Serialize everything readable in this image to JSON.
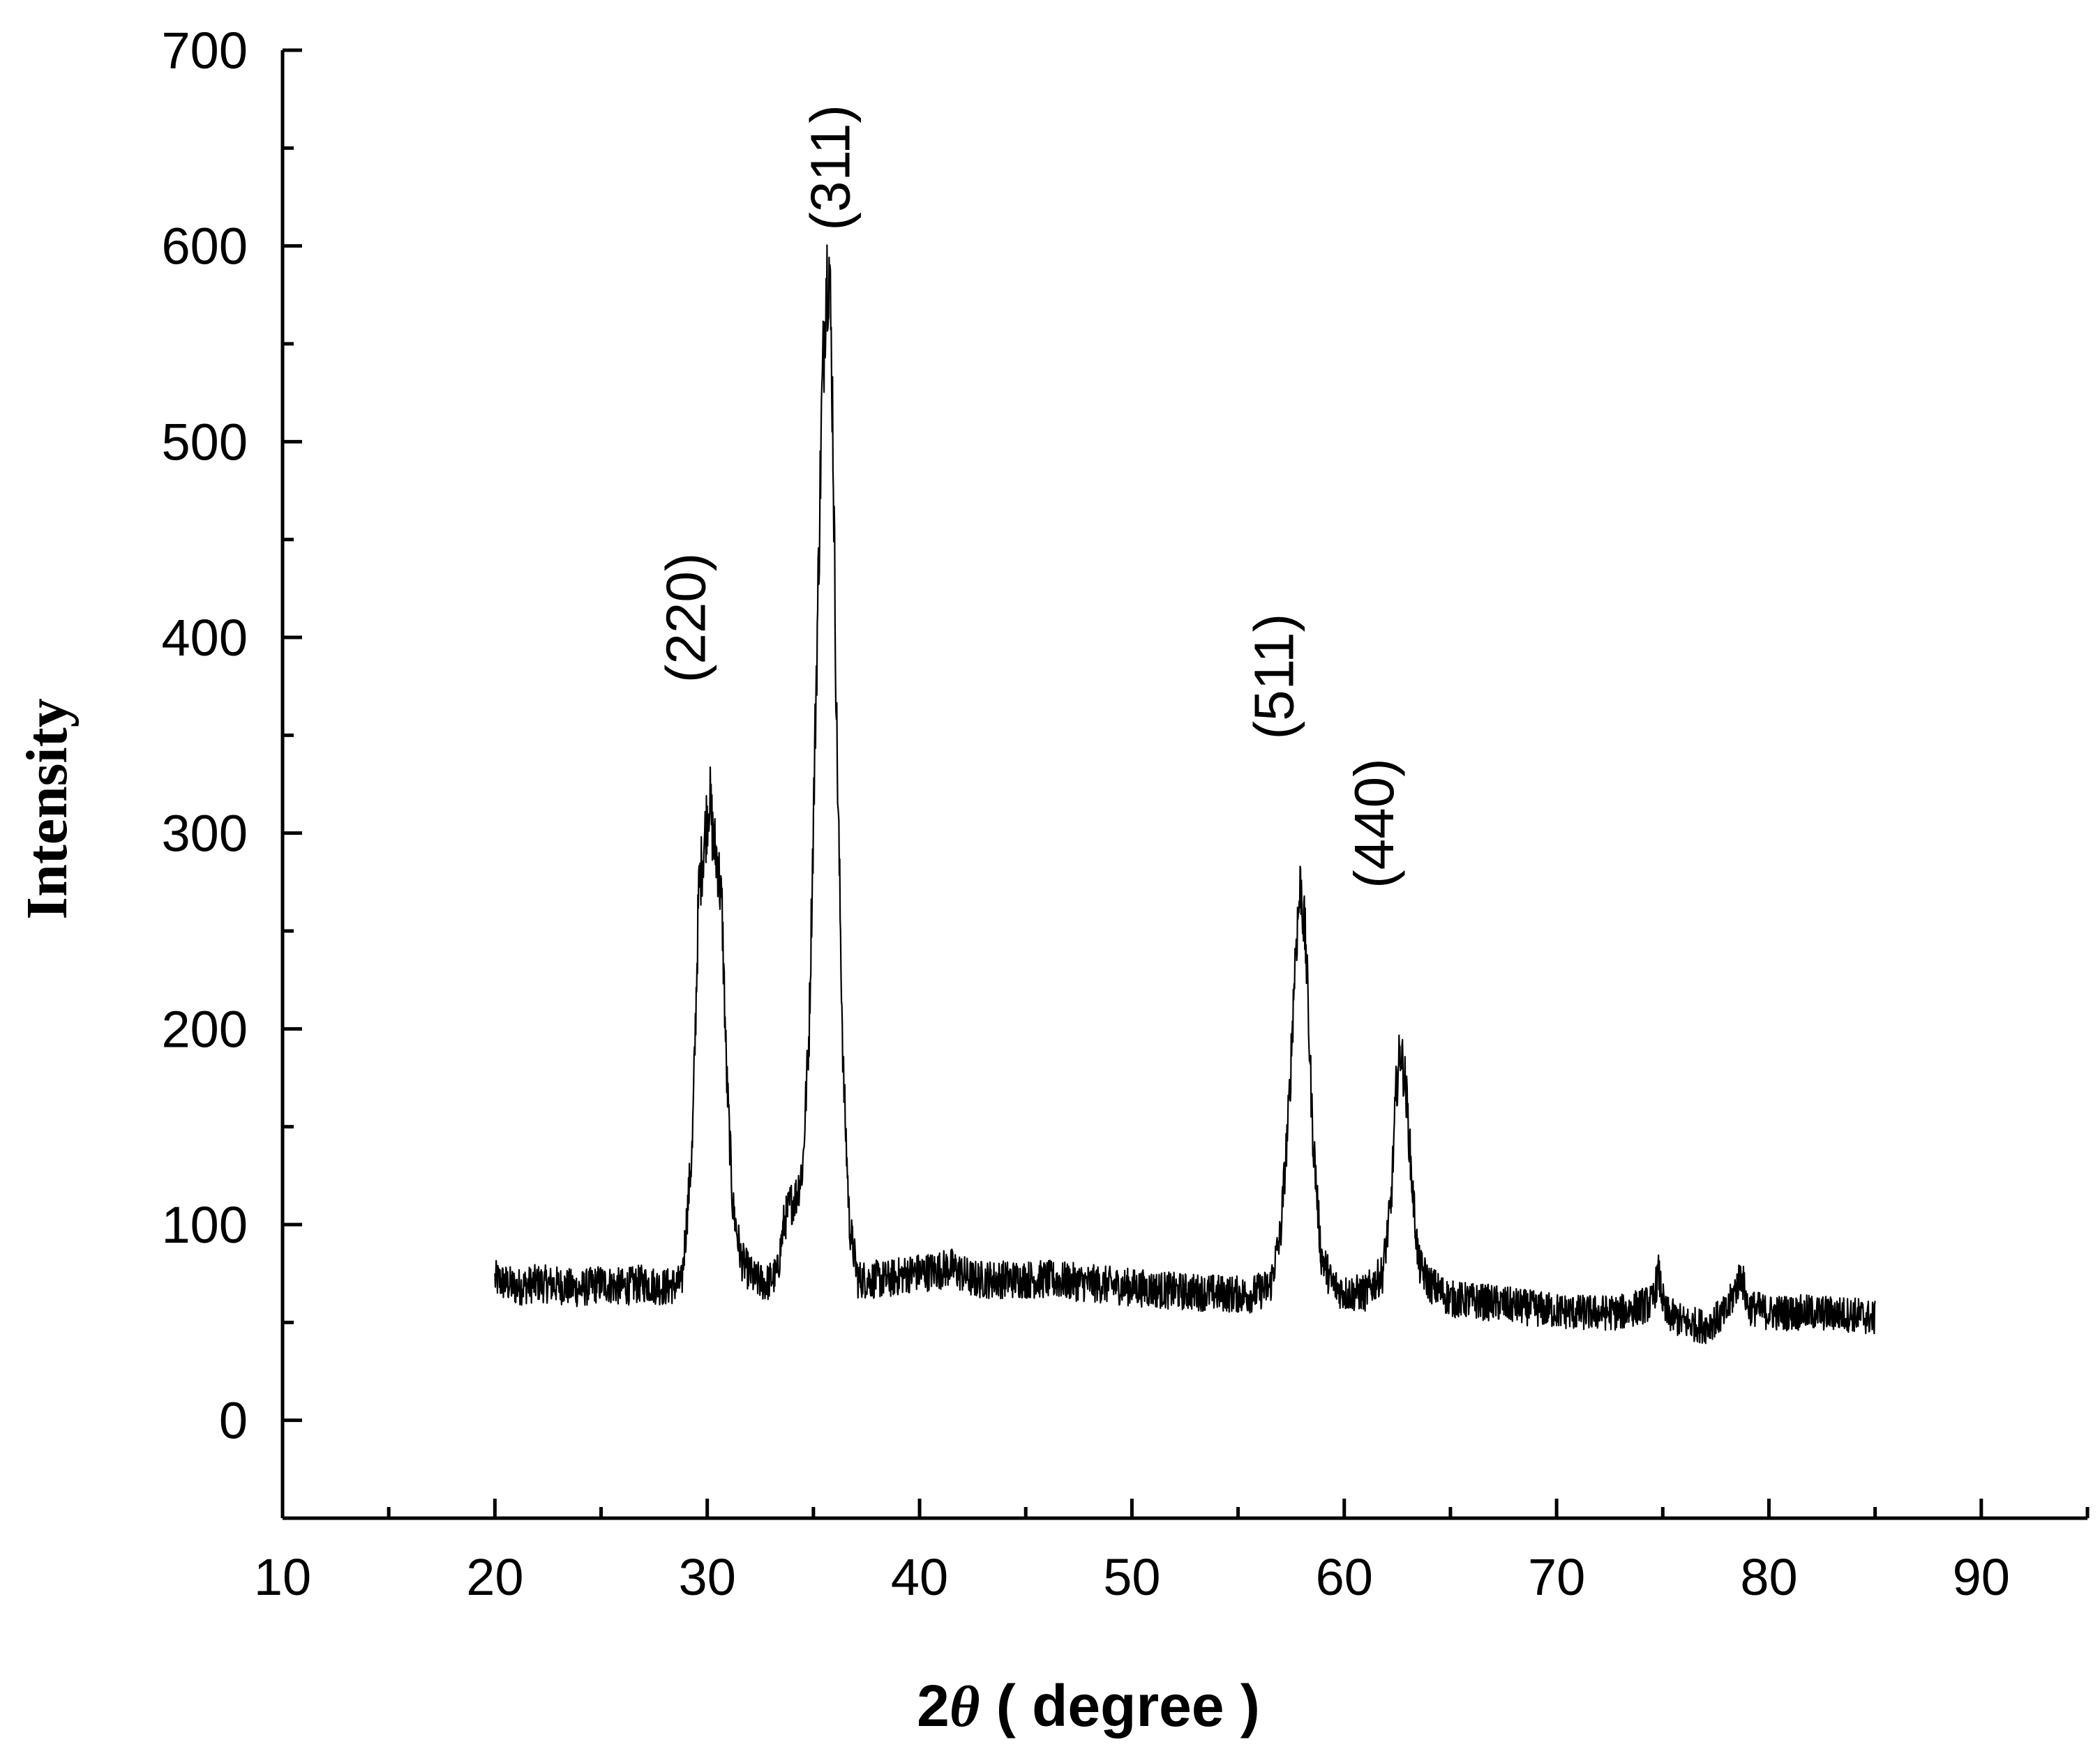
{
  "chart_data": {
    "type": "line",
    "title": "",
    "xlabel_prefix": "2",
    "xlabel_symbol": "θ",
    "xlabel_suffix": " ( degree )",
    "ylabel": "Intensity",
    "xlim": [
      10,
      95
    ],
    "ylim": [
      -50,
      700
    ],
    "x_ticks": [
      10,
      20,
      30,
      40,
      50,
      60,
      70,
      80,
      90
    ],
    "x_tick_labels": [
      "10",
      "20",
      "30",
      "40",
      "50",
      "60",
      "70",
      "80",
      "90"
    ],
    "x_minor_step": 5,
    "y_ticks": [
      0,
      100,
      200,
      300,
      400,
      500,
      600,
      700
    ],
    "y_tick_labels": [
      "0",
      "100",
      "200",
      "300",
      "400",
      "500",
      "600",
      "700"
    ],
    "y_minor_step": 50,
    "grid": false,
    "series": [
      {
        "x": [
          20,
          21,
          22,
          23,
          24,
          25,
          26,
          27,
          28,
          28.8,
          29.3,
          29.6,
          29.9,
          30.1,
          30.3,
          30.5,
          30.7,
          30.9,
          31.2,
          31.6,
          32.2,
          32.8,
          33.3,
          33.6,
          33.9,
          34.2,
          34.5,
          34.8,
          35.1,
          35.4,
          35.6,
          35.75,
          35.9,
          36.1,
          36.4,
          36.7,
          37.1,
          37.6,
          38.5,
          39.5,
          40.5,
          41.5,
          42.5,
          44,
          46,
          48,
          50,
          52,
          54,
          55.5,
          56.5,
          57,
          57.4,
          57.7,
          57.95,
          58.2,
          58.5,
          58.9,
          59.4,
          60,
          61,
          61.8,
          62.2,
          62.45,
          62.65,
          62.9,
          63.2,
          63.5,
          64,
          65,
          67,
          69,
          71,
          73,
          74.5,
          74.8,
          75.1,
          76,
          77,
          78,
          78.7,
          79,
          80,
          82,
          84,
          85
        ],
        "y": [
          72,
          68,
          70,
          69,
          67,
          70,
          68,
          70,
          68,
          70,
          140,
          270,
          300,
          320,
          295,
          285,
          260,
          180,
          110,
          82,
          72,
          70,
          75,
          100,
          110,
          115,
          130,
          200,
          360,
          520,
          585,
          590,
          520,
          350,
          180,
          100,
          72,
          72,
          72,
          75,
          76,
          78,
          72,
          72,
          72,
          70,
          68,
          66,
          65,
          64,
          68,
          95,
          160,
          240,
          275,
          240,
          150,
          85,
          70,
          65,
          65,
          75,
          110,
          170,
          190,
          170,
          120,
          80,
          70,
          62,
          60,
          57,
          55,
          55,
          60,
          75,
          55,
          50,
          48,
          55,
          75,
          58,
          55,
          55,
          54,
          52
        ]
      }
    ],
    "annotations": [
      {
        "text": "(220)",
        "x": 29.9,
        "y": 410
      },
      {
        "text": "(311)",
        "x": 36.7,
        "y": 640
      },
      {
        "text": "(511)",
        "x": 57.6,
        "y": 380
      },
      {
        "text": "(440)",
        "x": 62.3,
        "y": 305
      }
    ]
  }
}
